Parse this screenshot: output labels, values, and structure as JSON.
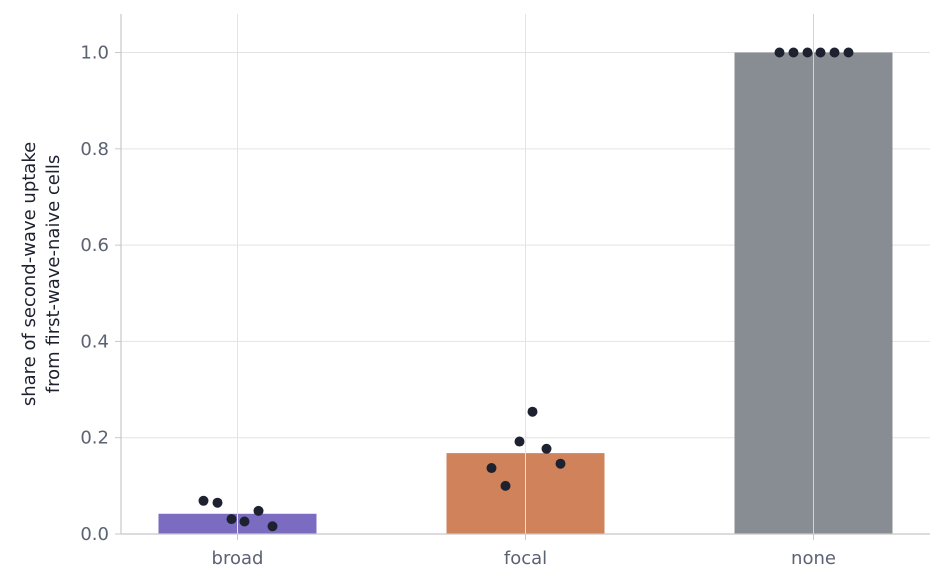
{
  "chart_data": {
    "type": "bar",
    "categories": [
      "broad",
      "focal",
      "none"
    ],
    "values": [
      0.042,
      0.168,
      1.0
    ],
    "points": [
      [
        0.069,
        0.065,
        0.031,
        0.026,
        0.048,
        0.016
      ],
      [
        0.137,
        0.1,
        0.192,
        0.254,
        0.177,
        0.146
      ],
      [
        1.0,
        1.0,
        1.0,
        1.0,
        1.0,
        1.0
      ]
    ],
    "title": "",
    "xlabel": "",
    "ylabel_lines": [
      "share of second-wave uptake",
      "from first-wave-naive cells"
    ],
    "ylim": [
      0,
      1.08
    ],
    "yticks": [
      0.0,
      0.2,
      0.4,
      0.6,
      0.8,
      1.0
    ],
    "ytick_labels": [
      "0.0",
      "0.2",
      "0.4",
      "0.6",
      "0.8",
      "1.0"
    ],
    "grid": true,
    "colors": {
      "bars": [
        "#7b6cc1",
        "#d0835a",
        "#888c93"
      ],
      "points": "#1e2230",
      "grid": "#e3e3e3",
      "axis": "#c8c8c8"
    }
  }
}
